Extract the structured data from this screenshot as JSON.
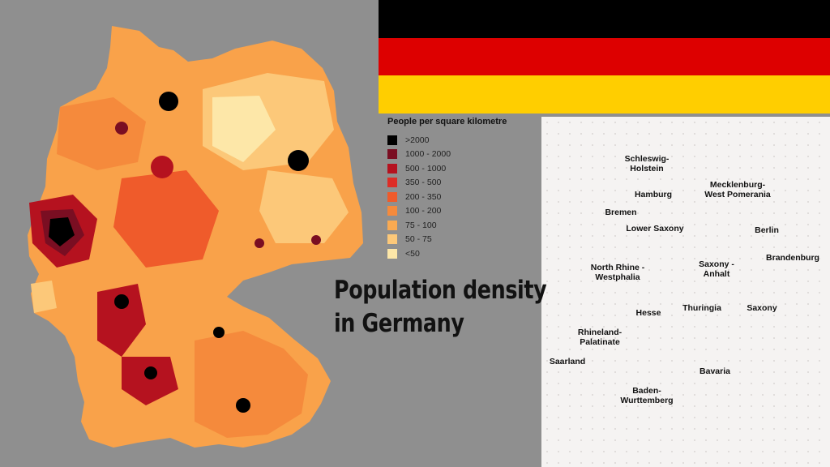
{
  "title_lines": [
    "Population density",
    "in Germany"
  ],
  "flag_colors": [
    "#000000",
    "#dd0000",
    "#ffce00"
  ],
  "legend": {
    "title": "People per square kilometre",
    "items": [
      {
        "label": ">2000",
        "color": "#000000"
      },
      {
        "label": "1000 - 2000",
        "color": "#7a0e22"
      },
      {
        "label": "500 - 1000",
        "color": "#b5121f"
      },
      {
        "label": "350 - 500",
        "color": "#dd2d26"
      },
      {
        "label": "200 - 350",
        "color": "#ef5b2b"
      },
      {
        "label": "100 - 200",
        "color": "#f58a3c"
      },
      {
        "label": "75 - 100",
        "color": "#f9aa52"
      },
      {
        "label": "50 - 75",
        "color": "#fcc879"
      },
      {
        "label": "<50",
        "color": "#fde7a8"
      }
    ]
  },
  "states_map": {
    "fill_color": "#ef6a5f",
    "states": [
      {
        "name": "Schleswig-\nHolstein"
      },
      {
        "name": "Hamburg"
      },
      {
        "name": "Mecklenburg-\nWest Pomerania"
      },
      {
        "name": "Bremen"
      },
      {
        "name": "Lower Saxony"
      },
      {
        "name": "Berlin"
      },
      {
        "name": "Brandenburg"
      },
      {
        "name": "North Rhine -\nWestphalia"
      },
      {
        "name": "Saxony -\nAnhalt"
      },
      {
        "name": "Hesse"
      },
      {
        "name": "Thuringia"
      },
      {
        "name": "Saxony"
      },
      {
        "name": "Rhineland-\nPalatinate"
      },
      {
        "name": "Saarland"
      },
      {
        "name": "Bavaria"
      },
      {
        "name": "Baden-\nWurttemberg"
      }
    ]
  }
}
